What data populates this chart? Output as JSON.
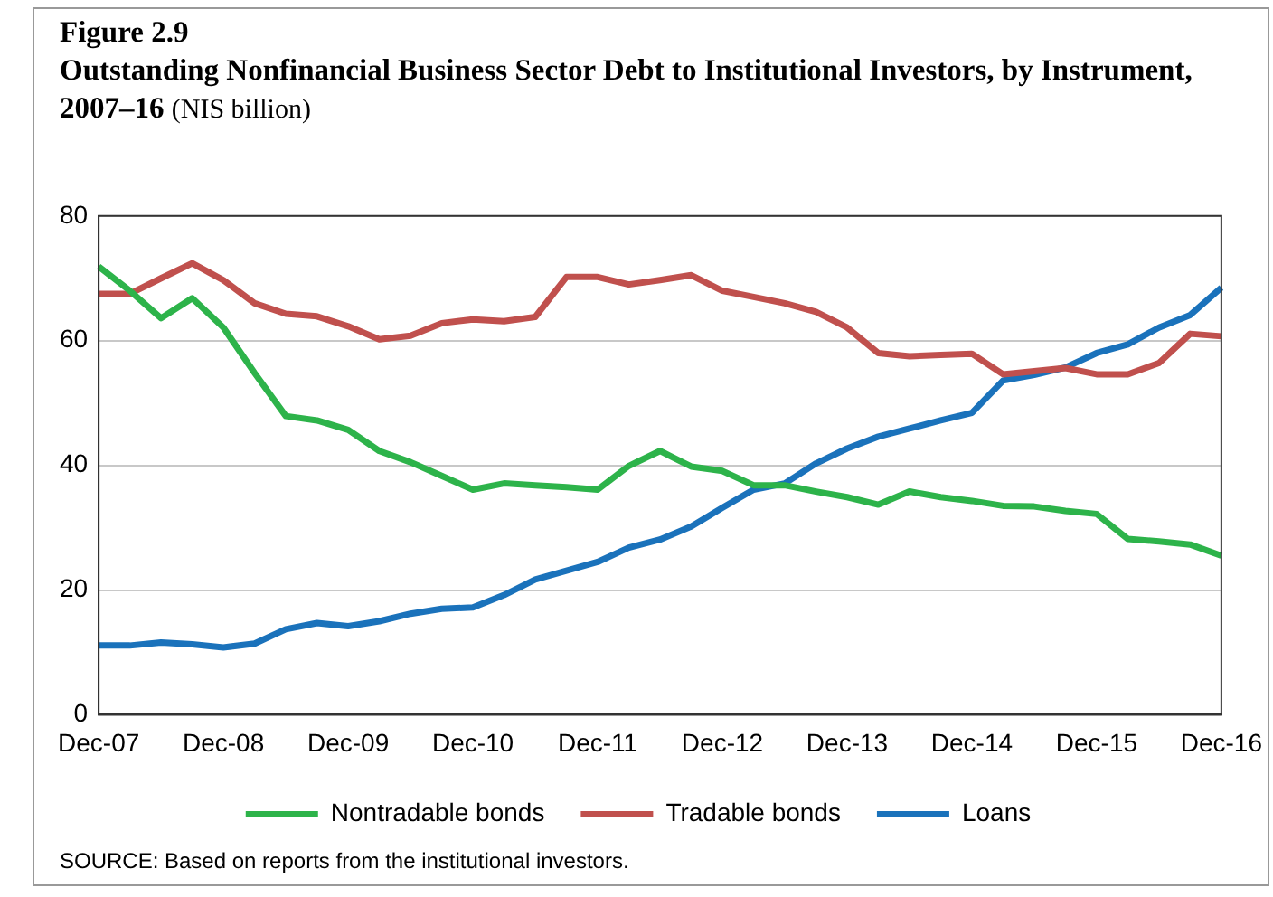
{
  "chart_data": {
    "type": "line",
    "title": "Figure 2.9",
    "subtitle": "Outstanding Nonfinancial Business Sector Debt to Institutional Investors, by Instrument, 2007–16",
    "ylabel": "(NIS billion)",
    "categories": [
      "Dec-07",
      null,
      null,
      null,
      "Dec-08",
      null,
      null,
      null,
      "Dec-09",
      null,
      null,
      null,
      "Dec-10",
      null,
      null,
      null,
      "Dec-11",
      null,
      null,
      null,
      "Dec-12",
      null,
      null,
      null,
      "Dec-13",
      null,
      null,
      null,
      "Dec-14",
      null,
      null,
      null,
      "Dec-15",
      null,
      null,
      null,
      "Dec-16"
    ],
    "series": [
      {
        "name": "Nontradable bonds",
        "color": "#2db34a",
        "values": [
          71.9,
          68,
          63.6,
          66.8,
          62.1,
          54.8,
          47.9,
          47.2,
          45.7,
          42.3,
          40.5,
          38.3,
          36.1,
          37.1,
          36.8,
          36.5,
          36.1,
          39.9,
          42.3,
          39.8,
          39.1,
          36.8,
          36.8,
          35.8,
          34.9,
          33.7,
          35.8,
          34.9,
          34.3,
          33.5,
          33.4,
          32.7,
          32.2,
          28.2,
          27.8,
          27.3,
          25.5
        ]
      },
      {
        "name": "Tradable bonds",
        "color": "#c0504d",
        "values": [
          67.5,
          67.5,
          70,
          72.4,
          69.7,
          66,
          64.3,
          63.9,
          62.3,
          60.2,
          60.8,
          62.8,
          63.4,
          63.1,
          63.8,
          70.2,
          70.2,
          69,
          69.7,
          70.5,
          68,
          67,
          66,
          64.6,
          62.1,
          58,
          57.5,
          57.7,
          57.9,
          54.6,
          55.1,
          55.6,
          54.6,
          54.6,
          56.4,
          61.1,
          60.7
        ]
      },
      {
        "name": "Loans",
        "color": "#1a72bb",
        "values": [
          11.1,
          11.1,
          11.6,
          11.3,
          10.8,
          11.4,
          13.7,
          14.7,
          14.2,
          15,
          16.2,
          17,
          17.2,
          19.2,
          21.7,
          23.1,
          24.5,
          26.8,
          28.1,
          30.2,
          33.2,
          36.1,
          37.1,
          40.3,
          42.7,
          44.6,
          45.9,
          47.2,
          48.4,
          53.6,
          54.5,
          55.7,
          58,
          59.4,
          62.1,
          64.1,
          68.5
        ]
      }
    ],
    "ylim": [
      0,
      80
    ],
    "yticks": [
      0,
      20,
      40,
      60,
      80
    ],
    "grid": "y",
    "legend": "bottom",
    "marker": "none",
    "line_style": "solid",
    "annotations": [
      "SOURCE: Based on reports from the institutional investors."
    ]
  }
}
